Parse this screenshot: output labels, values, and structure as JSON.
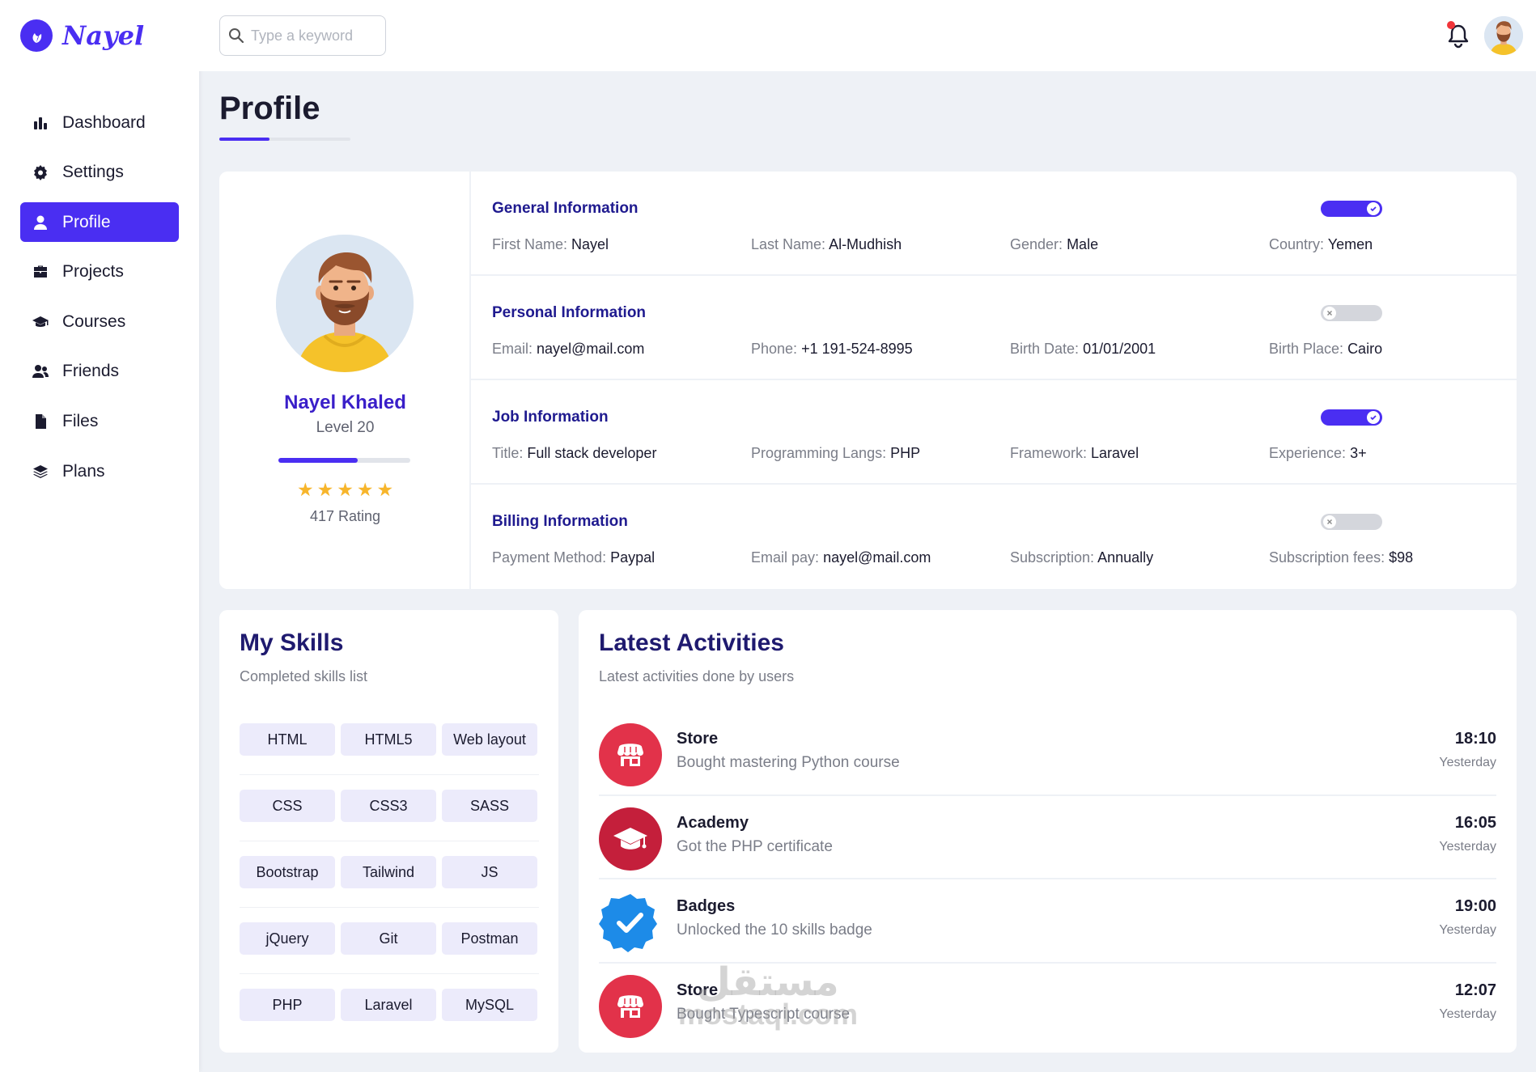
{
  "brand": {
    "name": "Nayel",
    "accent": "#4a2ef2"
  },
  "sidebar": {
    "items": [
      {
        "label": "Dashboard",
        "icon": "chart-bar-icon",
        "active": false
      },
      {
        "label": "Settings",
        "icon": "gear-icon",
        "active": false
      },
      {
        "label": "Profile",
        "icon": "user-icon",
        "active": true
      },
      {
        "label": "Projects",
        "icon": "briefcase-icon",
        "active": false
      },
      {
        "label": "Courses",
        "icon": "graduation-cap-icon",
        "active": false
      },
      {
        "label": "Friends",
        "icon": "users-icon",
        "active": false
      },
      {
        "label": "Files",
        "icon": "file-icon",
        "active": false
      },
      {
        "label": "Plans",
        "icon": "layers-icon",
        "active": false
      }
    ]
  },
  "topbar": {
    "search_placeholder": "Type a keyword",
    "notification_icon": "bell-icon",
    "has_notification": true
  },
  "page": {
    "title": "Profile"
  },
  "profile": {
    "name": "Nayel Khaled",
    "level": "Level 20",
    "level_progress": 0.6,
    "stars": 5,
    "rating": "417 Rating",
    "sections": [
      {
        "title": "General Information",
        "toggle": true,
        "fields": [
          {
            "label": "First Name:",
            "value": "Nayel"
          },
          {
            "label": "Last Name:",
            "value": "Al-Mudhish"
          },
          {
            "label": "Gender:",
            "value": "Male"
          },
          {
            "label": "Country:",
            "value": "Yemen"
          }
        ]
      },
      {
        "title": "Personal Information",
        "toggle": false,
        "fields": [
          {
            "label": "Email:",
            "value": "nayel@mail.com"
          },
          {
            "label": "Phone:",
            "value": "+1 191-524-8995"
          },
          {
            "label": "Birth Date:",
            "value": "01/01/2001"
          },
          {
            "label": "Birth Place:",
            "value": "Cairo"
          }
        ]
      },
      {
        "title": "Job Information",
        "toggle": true,
        "fields": [
          {
            "label": "Title:",
            "value": "Full stack developer"
          },
          {
            "label": "Programming Langs:",
            "value": "PHP"
          },
          {
            "label": "Framework:",
            "value": "Laravel"
          },
          {
            "label": "Experience:",
            "value": "3+"
          }
        ]
      },
      {
        "title": "Billing Information",
        "toggle": false,
        "fields": [
          {
            "label": "Payment Method:",
            "value": "Paypal"
          },
          {
            "label": "Email pay:",
            "value": "nayel@mail.com"
          },
          {
            "label": "Subscription:",
            "value": "Annually"
          },
          {
            "label": "Subscription fees:",
            "value": "$98"
          }
        ]
      }
    ]
  },
  "skills": {
    "title": "My Skills",
    "subtitle": "Completed skills list",
    "rows": [
      [
        "HTML",
        "HTML5",
        "Web layout"
      ],
      [
        "CSS",
        "CSS3",
        "SASS"
      ],
      [
        "Bootstrap",
        "Tailwind",
        "JS"
      ],
      [
        "jQuery",
        "Git",
        "Postman"
      ],
      [
        "PHP",
        "Laravel",
        "MySQL"
      ]
    ]
  },
  "activities": {
    "title": "Latest Activities",
    "subtitle": "Latest activities done by users",
    "items": [
      {
        "name": "Store",
        "desc": "Bought mastering Python course",
        "time": "18:10",
        "day": "Yesterday",
        "icon": "store-icon",
        "color": "#e2324a"
      },
      {
        "name": "Academy",
        "desc": "Got the PHP certificate",
        "time": "16:05",
        "day": "Yesterday",
        "icon": "graduation-cap-icon",
        "color": "#c41f3b"
      },
      {
        "name": "Badges",
        "desc": "Unlocked the 10 skills badge",
        "time": "19:00",
        "day": "Yesterday",
        "icon": "verified-badge-icon",
        "color": "#1d8be8"
      },
      {
        "name": "Store",
        "desc": "Bought Typescript course",
        "time": "12:07",
        "day": "Yesterday",
        "icon": "store-icon",
        "color": "#e2324a"
      }
    ]
  },
  "watermark": {
    "arabic": "مستقل",
    "latin": "mostaql.com"
  }
}
